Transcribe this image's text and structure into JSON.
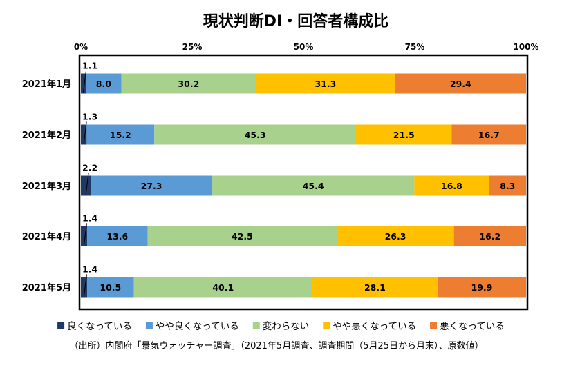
{
  "chart_data": {
    "type": "bar",
    "orientation": "horizontal",
    "stacked": "percent",
    "title": "現状判断DI・回答者構成比",
    "categories": [
      "2021年1月",
      "2021年2月",
      "2021年3月",
      "2021年4月",
      "2021年5月"
    ],
    "series": [
      {
        "name": "良くなっている",
        "color": "#1f3864",
        "values": [
          1.1,
          1.3,
          2.2,
          1.4,
          1.4
        ]
      },
      {
        "name": "やや良くなっている",
        "color": "#5b9bd5",
        "values": [
          8.0,
          15.2,
          27.3,
          13.6,
          10.5
        ]
      },
      {
        "name": "変わらない",
        "color": "#a9d18e",
        "values": [
          30.2,
          45.3,
          45.4,
          42.5,
          40.1
        ]
      },
      {
        "name": "やや悪くなっている",
        "color": "#ffc000",
        "values": [
          31.3,
          21.5,
          16.8,
          26.3,
          28.1
        ]
      },
      {
        "name": "悪くなっている",
        "color": "#ed7d31",
        "values": [
          29.4,
          16.7,
          8.3,
          16.2,
          19.9
        ]
      }
    ],
    "x_ticks": [
      "0%",
      "25%",
      "50%",
      "75%",
      "100%"
    ],
    "xlim": [
      0,
      100
    ],
    "grid": false,
    "legend_position": "bottom",
    "source": "（出所）内閣府「景気ウォッチャー調査」（2021年5月調査、調査期間（5月25日から月末）、原数値）"
  }
}
